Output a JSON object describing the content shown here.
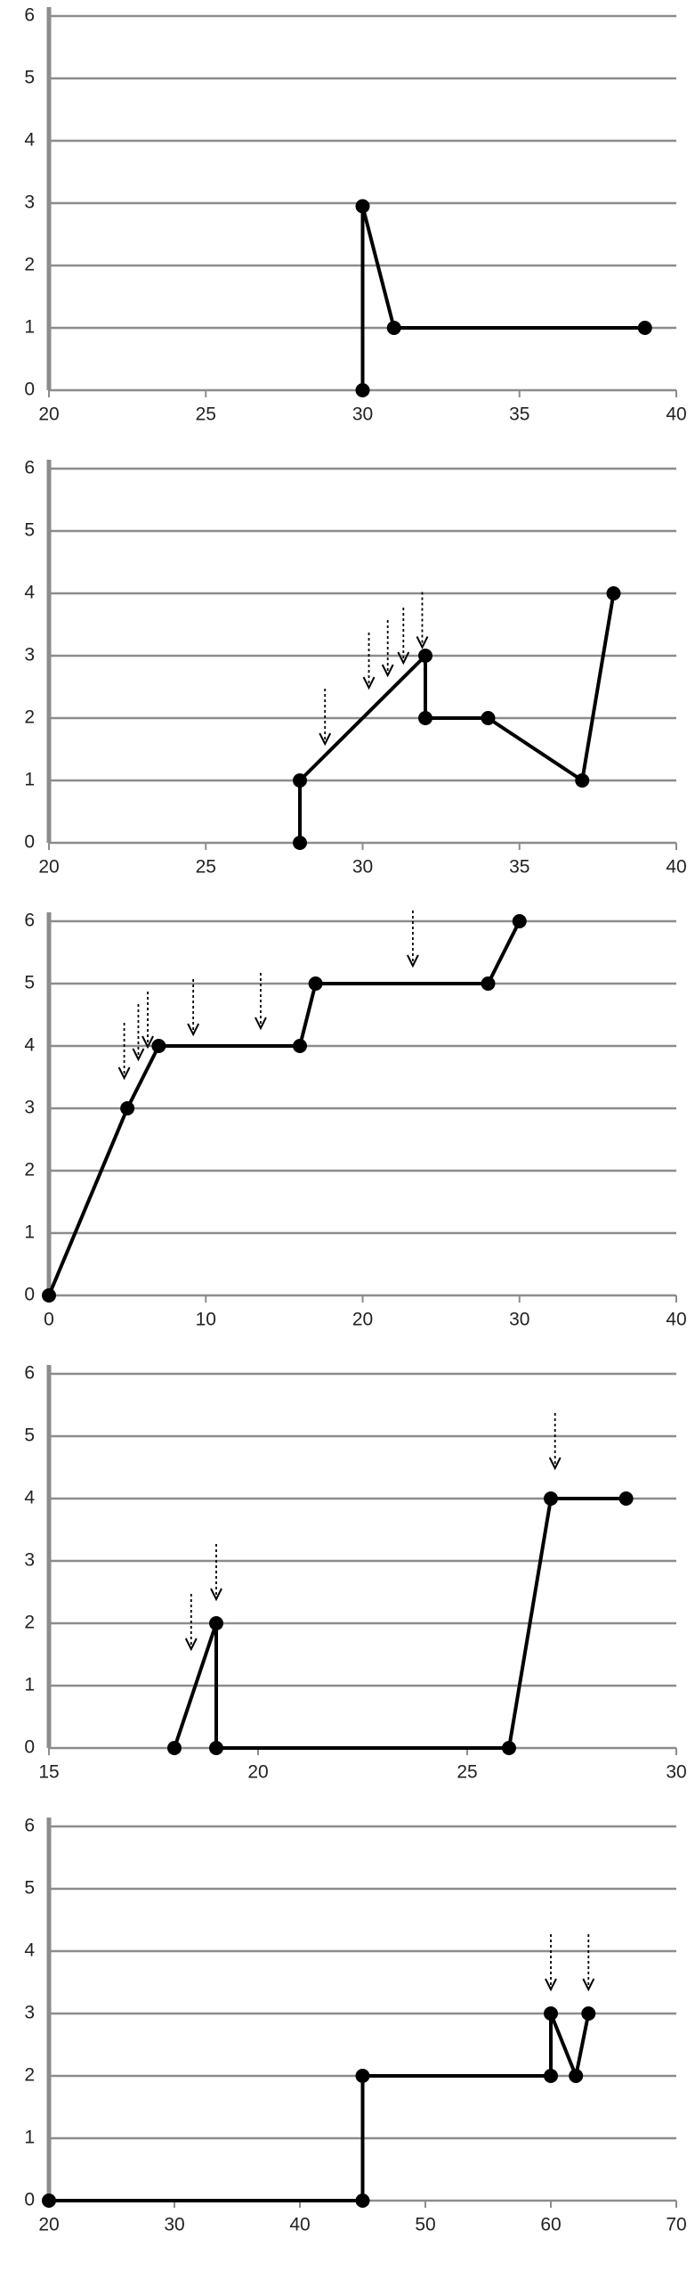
{
  "chart_data": [
    {
      "type": "line",
      "x": [
        30,
        30,
        31,
        39
      ],
      "series": [
        {
          "color": "#000000",
          "values": [
            0,
            2.95,
            1,
            1
          ]
        }
      ],
      "xlim": [
        20,
        40
      ],
      "xticks": [
        20,
        25,
        30,
        35,
        40
      ],
      "ylim": [
        0,
        6
      ],
      "yticks": [
        0,
        1,
        2,
        3,
        4,
        5,
        6
      ],
      "grid": true,
      "arrows": {
        "x": [],
        "y": []
      }
    },
    {
      "type": "line",
      "x": [
        28,
        28,
        32,
        32,
        34,
        37,
        38
      ],
      "series": [
        {
          "color": "#000000",
          "values": [
            0,
            1,
            3,
            2,
            2,
            1,
            4
          ]
        }
      ],
      "xlim": [
        20,
        40
      ],
      "xticks": [
        20,
        25,
        30,
        35,
        40
      ],
      "ylim": [
        0,
        6
      ],
      "yticks": [
        0,
        1,
        2,
        3,
        4,
        5,
        6
      ],
      "grid": true,
      "arrows": {
        "x": [
          28.8,
          30.2,
          30.8,
          31.3,
          31.9
        ],
        "y": [
          1.5,
          2.4,
          2.6,
          2.8,
          3.05
        ]
      }
    },
    {
      "type": "line",
      "x": [
        0,
        5,
        7,
        16,
        17,
        28,
        30
      ],
      "series": [
        {
          "color": "#000000",
          "values": [
            0,
            3,
            4,
            4,
            5,
            5,
            6
          ]
        }
      ],
      "xlim": [
        0,
        40
      ],
      "xticks": [
        0,
        10,
        20,
        30,
        40
      ],
      "ylim": [
        0,
        6
      ],
      "yticks": [
        0,
        1,
        2,
        3,
        4,
        5,
        6
      ],
      "grid": true,
      "arrows": {
        "x": [
          4.8,
          5.7,
          6.3,
          9.2,
          13.5,
          23.2
        ],
        "y": [
          3.4,
          3.7,
          3.9,
          4.1,
          4.2,
          5.2
        ]
      }
    },
    {
      "type": "line",
      "x": [
        18,
        19,
        19,
        26,
        27,
        28.8
      ],
      "series": [
        {
          "color": "#000000",
          "values": [
            0,
            2,
            0,
            0,
            4,
            4
          ]
        }
      ],
      "xlim": [
        15,
        30
      ],
      "xticks": [
        15,
        20,
        25,
        30
      ],
      "ylim": [
        0,
        6
      ],
      "yticks": [
        0,
        1,
        2,
        3,
        4,
        5,
        6
      ],
      "grid": true,
      "arrows": {
        "x": [
          18.4,
          19,
          27.1
        ],
        "y": [
          1.5,
          2.3,
          4.4
        ]
      }
    },
    {
      "type": "line",
      "x": [
        20,
        45,
        45,
        60,
        60,
        62,
        63
      ],
      "series": [
        {
          "color": "#000000",
          "values": [
            0,
            0,
            2,
            2,
            3,
            2,
            3
          ]
        }
      ],
      "xlim": [
        20,
        70
      ],
      "xticks": [
        20,
        30,
        40,
        50,
        60,
        70
      ],
      "ylim": [
        0,
        6
      ],
      "yticks": [
        0,
        1,
        2,
        3,
        4,
        5,
        6
      ],
      "grid": true,
      "arrows": {
        "x": [
          60,
          63
        ],
        "y": [
          3.3,
          3.3
        ]
      }
    }
  ]
}
